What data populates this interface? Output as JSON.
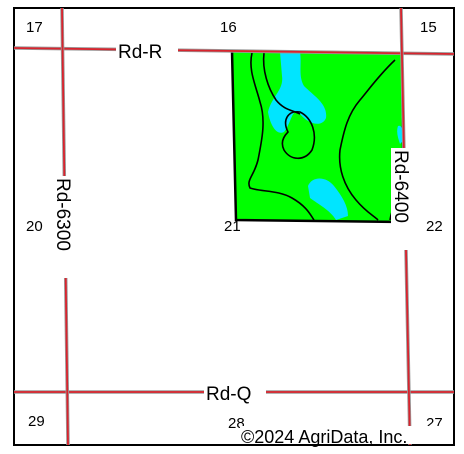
{
  "sections": {
    "s17": "17",
    "s16": "16",
    "s15": "15",
    "s20": "20",
    "s21": "21",
    "s22": "22",
    "s29": "29",
    "s28": "28",
    "s27": "27"
  },
  "roads": {
    "rd_r": "Rd-R",
    "rd_q": "Rd-Q",
    "rd_6300": "Rd-6300",
    "rd_6400": "Rd-6400"
  },
  "copyright": "©2024 AgriData, Inc.",
  "colors": {
    "field": "#00ff00",
    "water": "#00e5ff",
    "road": "#d9232d",
    "road_edge": "#9a9a9a",
    "border": "#000000"
  }
}
